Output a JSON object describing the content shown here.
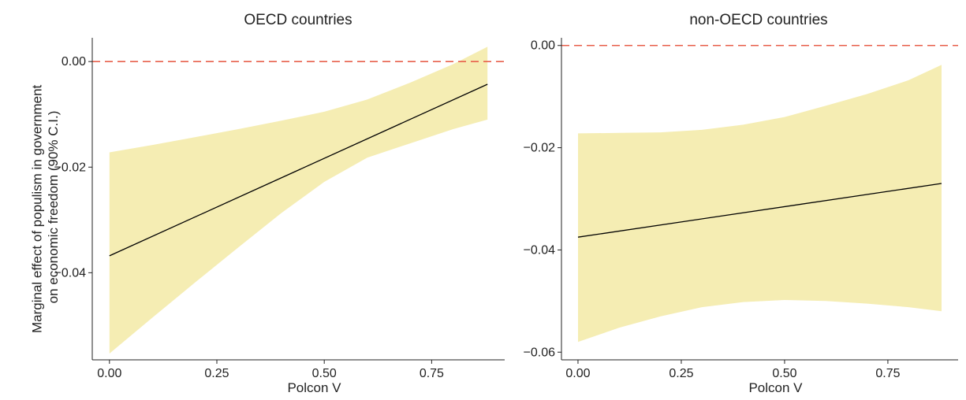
{
  "figure": {
    "shared_ylabel": "Marginal effect of populism in government\non economic freedom (90% C.I.)"
  },
  "chart_data": [
    {
      "type": "line",
      "title": "OECD countries",
      "xlabel": "Polcon V",
      "ylabel": "Marginal effect of populism in government on economic freedom (90% C.I.)",
      "xlim": [
        -0.04,
        0.92
      ],
      "ylim": [
        -0.0565,
        0.0045
      ],
      "xticks": [
        0.0,
        0.25,
        0.5,
        0.75
      ],
      "xtick_labels": [
        "0.00",
        "0.25",
        "0.50",
        "0.75"
      ],
      "yticks": [
        0.0,
        -0.02,
        -0.04
      ],
      "ytick_labels": [
        "0.00",
        "−0.02",
        "−0.04"
      ],
      "grid": false,
      "reference_line": {
        "y": 0.0,
        "style": "dashed",
        "color": "#e8604c"
      },
      "series": [
        {
          "kind": "line",
          "x": [
            0.0,
            0.88
          ],
          "y": [
            -0.0368,
            -0.0043
          ],
          "color": "#000000"
        },
        {
          "kind": "band",
          "x": [
            0.0,
            0.1,
            0.2,
            0.3,
            0.4,
            0.5,
            0.6,
            0.7,
            0.8,
            0.88
          ],
          "lower": [
            -0.0553,
            -0.0485,
            -0.0418,
            -0.0352,
            -0.0287,
            -0.0228,
            -0.0182,
            -0.0155,
            -0.0128,
            -0.011
          ],
          "upper": [
            -0.0172,
            -0.0158,
            -0.0143,
            -0.0128,
            -0.0112,
            -0.0095,
            -0.0072,
            -0.004,
            -0.0005,
            0.0028
          ],
          "color": "#f5edb3"
        }
      ]
    },
    {
      "type": "line",
      "title": "non-OECD countries",
      "xlabel": "Polcon V",
      "xlim": [
        -0.04,
        0.92
      ],
      "ylim": [
        -0.0615,
        0.0015
      ],
      "xticks": [
        0.0,
        0.25,
        0.5,
        0.75
      ],
      "xtick_labels": [
        "0.00",
        "0.25",
        "0.50",
        "0.75"
      ],
      "yticks": [
        0.0,
        -0.02,
        -0.04,
        -0.06
      ],
      "ytick_labels": [
        "0.00",
        "−0.02",
        "−0.04",
        "−0.06"
      ],
      "grid": false,
      "reference_line": {
        "y": 0.0,
        "style": "dashed",
        "color": "#e8604c"
      },
      "series": [
        {
          "kind": "line",
          "x": [
            0.0,
            0.88
          ],
          "y": [
            -0.0375,
            -0.027
          ],
          "color": "#000000"
        },
        {
          "kind": "band",
          "x": [
            0.0,
            0.1,
            0.2,
            0.3,
            0.4,
            0.5,
            0.6,
            0.7,
            0.8,
            0.88
          ],
          "lower": [
            -0.058,
            -0.0552,
            -0.053,
            -0.0512,
            -0.0502,
            -0.0498,
            -0.05,
            -0.0505,
            -0.0512,
            -0.052
          ],
          "upper": [
            -0.0172,
            -0.0171,
            -0.017,
            -0.0165,
            -0.0155,
            -0.014,
            -0.0118,
            -0.0095,
            -0.0068,
            -0.0038
          ],
          "color": "#f5edb3"
        }
      ]
    }
  ]
}
